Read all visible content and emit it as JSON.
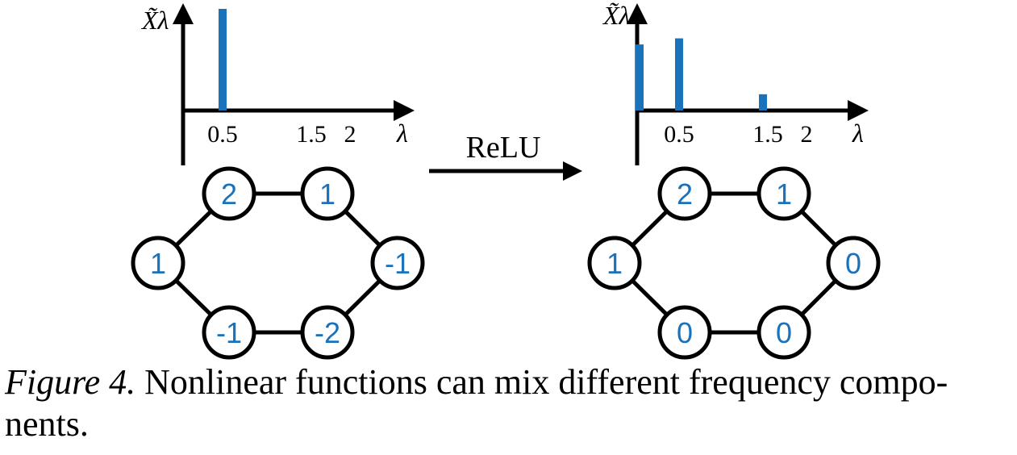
{
  "chart_data": [
    {
      "type": "bar",
      "ylabel": "X̃λ",
      "xlabel": "λ",
      "xticks": [
        "0.5",
        "1.5",
        "2"
      ],
      "tick_values": [
        0.5,
        1.5,
        2
      ],
      "x": [
        0.5
      ],
      "values": [
        1.0
      ],
      "xlim": [
        0,
        2.5
      ],
      "ylim": [
        0,
        1
      ],
      "color": "#1a72bb"
    },
    {
      "type": "bar",
      "ylabel": "X̃λ",
      "xlabel": "λ",
      "xticks": [
        "0.5",
        "1.5",
        "2"
      ],
      "tick_values": [
        0.5,
        1.5,
        2
      ],
      "x": [
        0,
        0.5,
        1.5
      ],
      "values": [
        0.65,
        0.71,
        0.16
      ],
      "xlim": [
        0,
        2.5
      ],
      "ylim": [
        0,
        1
      ],
      "color": "#1a72bb"
    }
  ],
  "transform_label": "ReLU",
  "graphs": [
    {
      "nodes": [
        "2",
        "1",
        "-1",
        "-2",
        "-1",
        "1"
      ]
    },
    {
      "nodes": [
        "2",
        "1",
        "0",
        "0",
        "0",
        "1"
      ]
    }
  ],
  "caption": {
    "label": "Figure 4.",
    "text": " Nonlinear functions can mix different frequency compo-nents."
  }
}
